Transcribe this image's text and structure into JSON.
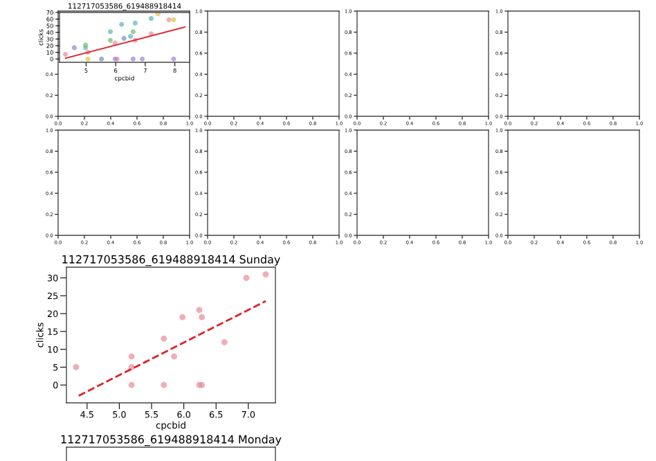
{
  "chart_data": [
    {
      "type": "scatter",
      "title": "112717053586_619488918414",
      "xlabel": "cpcbid",
      "ylabel": "clicks",
      "xlim": [
        4.1,
        8.5
      ],
      "ylim": [
        -5,
        70
      ],
      "xticks": [
        5,
        6,
        7,
        8
      ],
      "yticks": [
        0,
        10,
        20,
        30,
        40,
        50,
        60,
        70
      ],
      "series": [
        {
          "color": "#5fb3b3",
          "x": [
            4.98,
            5.82,
            6.2,
            6.66,
            7.2,
            6.5
          ],
          "values": [
            17,
            41,
            52,
            54,
            61,
            34
          ]
        },
        {
          "color": "#e88a9a",
          "x": [
            4.3,
            5.06,
            5.98,
            6.66,
            7.2,
            7.8,
            6.05
          ],
          "values": [
            7,
            10,
            24,
            28,
            38,
            59,
            0
          ]
        },
        {
          "color": "#6cbf6c",
          "x": [
            4.98,
            5.82,
            6.59
          ],
          "values": [
            21,
            28,
            41
          ]
        },
        {
          "color": "#e0c040",
          "x": [
            5.06,
            7.43,
            7.96
          ],
          "values": [
            0,
            68,
            59
          ]
        },
        {
          "color": "#a080d0",
          "x": [
            4.6,
            5.98,
            6.59,
            6.9,
            7.96
          ],
          "values": [
            17,
            0,
            0,
            0,
            0
          ]
        },
        {
          "color": "#7090c0",
          "x": [
            5.52,
            6.28
          ],
          "values": [
            0,
            31
          ]
        },
        {
          "type": "line",
          "line_style": "solid",
          "marker": "none",
          "color": "#e0202a",
          "x": [
            4.3,
            8.34
          ],
          "values": [
            1,
            48
          ]
        }
      ]
    },
    {
      "type": "scatter",
      "xlim": [
        0,
        1
      ],
      "ylim": [
        0,
        1
      ],
      "xticks": [
        {
          "value": 0,
          "label": "0.0"
        },
        {
          "value": 0.2,
          "label": "0.2"
        },
        {
          "value": 0.4,
          "label": "0.4"
        },
        {
          "value": 0.6,
          "label": "0.6"
        },
        {
          "value": 0.8,
          "label": "0.8"
        },
        {
          "value": 1,
          "label": "1.0"
        }
      ],
      "yticks": [
        {
          "value": 0,
          "label": "0.0"
        },
        {
          "value": 0.2,
          "label": "0.2"
        },
        {
          "value": 0.4,
          "label": "0.4"
        }
      ]
    },
    {
      "type": "scatter",
      "xlim": [
        0,
        1
      ],
      "ylim": [
        0,
        1
      ],
      "xticks": [
        {
          "value": 0,
          "label": "0.0"
        },
        {
          "value": 0.2,
          "label": "0.2"
        },
        {
          "value": 0.4,
          "label": "0.4"
        },
        {
          "value": 0.6,
          "label": "0.6"
        },
        {
          "value": 0.8,
          "label": "0.8"
        },
        {
          "value": 1,
          "label": "1.0"
        }
      ],
      "yticks": [
        {
          "value": 0,
          "label": "0.0"
        },
        {
          "value": 0.2,
          "label": "0.2"
        },
        {
          "value": 0.4,
          "label": "0.4"
        },
        {
          "value": 0.6,
          "label": "0.6"
        },
        {
          "value": 0.8,
          "label": "0.8"
        },
        {
          "value": 1,
          "label": "1.0"
        }
      ]
    },
    {
      "type": "scatter",
      "xlim": [
        0,
        1
      ],
      "ylim": [
        0,
        1
      ],
      "xticks": [
        {
          "value": 0,
          "label": "0.0"
        },
        {
          "value": 0.2,
          "label": "0.2"
        },
        {
          "value": 0.4,
          "label": "0.4"
        },
        {
          "value": 0.6,
          "label": "0.6"
        },
        {
          "value": 0.8,
          "label": "0.8"
        },
        {
          "value": 1,
          "label": "1.0"
        }
      ],
      "yticks": [
        {
          "value": 0,
          "label": "0.0"
        },
        {
          "value": 0.2,
          "label": "0.2"
        },
        {
          "value": 0.4,
          "label": "0.4"
        },
        {
          "value": 0.6,
          "label": "0.6"
        },
        {
          "value": 0.8,
          "label": "0.8"
        },
        {
          "value": 1,
          "label": "1.0"
        }
      ]
    },
    {
      "type": "scatter",
      "xlim": [
        0,
        1
      ],
      "ylim": [
        0,
        1
      ],
      "xticks": [
        {
          "value": 0,
          "label": "0.0"
        },
        {
          "value": 0.2,
          "label": "0.2"
        },
        {
          "value": 0.4,
          "label": "0.4"
        },
        {
          "value": 0.6,
          "label": "0.6"
        },
        {
          "value": 0.8,
          "label": "0.8"
        },
        {
          "value": 1,
          "label": "1.0"
        }
      ],
      "yticks": [
        {
          "value": 0,
          "label": "0.0"
        },
        {
          "value": 0.2,
          "label": "0.2"
        },
        {
          "value": 0.4,
          "label": "0.4"
        },
        {
          "value": 0.6,
          "label": "0.6"
        },
        {
          "value": 0.8,
          "label": "0.8"
        },
        {
          "value": 1,
          "label": "1.0"
        }
      ]
    },
    {
      "type": "scatter",
      "xlim": [
        0,
        1
      ],
      "ylim": [
        0,
        1
      ],
      "xticks": [
        {
          "value": 0,
          "label": "0.0"
        },
        {
          "value": 0.2,
          "label": "0.2"
        },
        {
          "value": 0.4,
          "label": "0.4"
        },
        {
          "value": 0.6,
          "label": "0.6"
        },
        {
          "value": 0.8,
          "label": "0.8"
        },
        {
          "value": 1,
          "label": "1.0"
        }
      ],
      "yticks": [
        {
          "value": 0,
          "label": "0.0"
        },
        {
          "value": 0.2,
          "label": "0.2"
        },
        {
          "value": 0.4,
          "label": "0.4"
        },
        {
          "value": 0.6,
          "label": "0.6"
        },
        {
          "value": 0.8,
          "label": "0.8"
        },
        {
          "value": 1,
          "label": "1.0"
        }
      ]
    },
    {
      "type": "scatter",
      "xlim": [
        0,
        1
      ],
      "ylim": [
        0,
        1
      ],
      "xticks": [
        {
          "value": 0,
          "label": "0.0"
        },
        {
          "value": 0.2,
          "label": "0.2"
        },
        {
          "value": 0.4,
          "label": "0.4"
        },
        {
          "value": 0.6,
          "label": "0.6"
        },
        {
          "value": 0.8,
          "label": "0.8"
        },
        {
          "value": 1,
          "label": "1.0"
        }
      ],
      "yticks": [
        {
          "value": 0,
          "label": "0.0"
        },
        {
          "value": 0.2,
          "label": "0.2"
        },
        {
          "value": 0.4,
          "label": "0.4"
        },
        {
          "value": 0.6,
          "label": "0.6"
        },
        {
          "value": 0.8,
          "label": "0.8"
        },
        {
          "value": 1,
          "label": "1.0"
        }
      ]
    },
    {
      "type": "scatter",
      "xlim": [
        0,
        1
      ],
      "ylim": [
        0,
        1
      ],
      "xticks": [
        {
          "value": 0,
          "label": "0.0"
        },
        {
          "value": 0.2,
          "label": "0.2"
        },
        {
          "value": 0.4,
          "label": "0.4"
        },
        {
          "value": 0.6,
          "label": "0.6"
        },
        {
          "value": 0.8,
          "label": "0.8"
        },
        {
          "value": 1,
          "label": "1.0"
        }
      ],
      "yticks": [
        {
          "value": 0,
          "label": "0.0"
        },
        {
          "value": 0.2,
          "label": "0.2"
        },
        {
          "value": 0.4,
          "label": "0.4"
        },
        {
          "value": 0.6,
          "label": "0.6"
        },
        {
          "value": 0.8,
          "label": "0.8"
        },
        {
          "value": 1,
          "label": "1.0"
        }
      ]
    },
    {
      "type": "scatter",
      "xlim": [
        0,
        1
      ],
      "ylim": [
        0,
        1
      ],
      "xticks": [
        {
          "value": 0,
          "label": "0.0"
        },
        {
          "value": 0.2,
          "label": "0.2"
        },
        {
          "value": 0.4,
          "label": "0.4"
        },
        {
          "value": 0.6,
          "label": "0.6"
        },
        {
          "value": 0.8,
          "label": "0.8"
        },
        {
          "value": 1,
          "label": "1.0"
        }
      ],
      "yticks": [
        {
          "value": 0,
          "label": "0.0"
        },
        {
          "value": 0.2,
          "label": "0.2"
        },
        {
          "value": 0.4,
          "label": "0.4"
        },
        {
          "value": 0.6,
          "label": "0.6"
        },
        {
          "value": 0.8,
          "label": "0.8"
        },
        {
          "value": 1,
          "label": "1.0"
        }
      ]
    },
    {
      "type": "scatter",
      "title": "112717053586_619488918414 Sunday",
      "xlabel": "cpcbid",
      "ylabel": "clicks",
      "xlim": [
        4.18,
        7.42
      ],
      "ylim": [
        -5,
        33
      ],
      "xticks": [
        4.5,
        {
          "value": 5,
          "label": "5.0"
        },
        5.5,
        {
          "value": 6,
          "label": "6.0"
        },
        6.5,
        {
          "value": 7,
          "label": "7.0"
        }
      ],
      "yticks": [
        0,
        5,
        10,
        15,
        20,
        25,
        30
      ],
      "series": [
        {
          "color": "#e88a9a",
          "x": [
            4.33,
            5.19,
            5.19,
            5.19,
            5.69,
            5.69,
            5.85,
            5.98,
            6.24,
            6.28,
            6.24,
            6.28,
            6.63,
            6.97,
            7.27
          ],
          "values": [
            5,
            8,
            5,
            0,
            13,
            0,
            8,
            19,
            21,
            19,
            0,
            0,
            12,
            30,
            31
          ]
        },
        {
          "type": "line",
          "line_style": "dashed",
          "marker": "none",
          "color": "#e0202a",
          "x": [
            4.37,
            7.27
          ],
          "values": [
            -3,
            23.5
          ]
        }
      ]
    },
    {
      "type": "other",
      "title": "112717053586_619488918414 Monday"
    }
  ]
}
